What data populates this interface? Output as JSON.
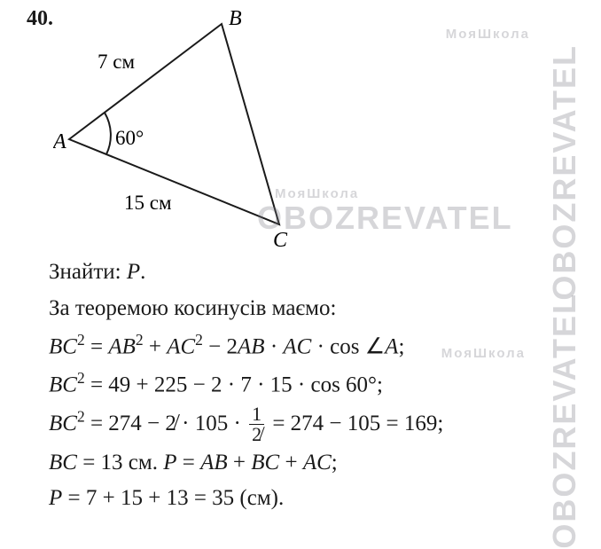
{
  "problem_number": "40.",
  "triangle": {
    "type": "diagram",
    "vertex_labels": {
      "A": "A",
      "B": "B",
      "C": "C"
    },
    "side_labels": {
      "AB": "7 см",
      "AC": "15 см"
    },
    "angle_label": "60°",
    "points": {
      "A": [
        18,
        147
      ],
      "B": [
        190,
        17
      ],
      "C": [
        255,
        243
      ]
    },
    "stroke_color": "#1a1a1a",
    "stroke_width": 2,
    "label_fontsize": 24,
    "vertex_fontstyle": "italic"
  },
  "solution": {
    "line1": "Знайти: <span class=\"italic\">P</span>.",
    "line2": "За теоремою косинусів маємо:",
    "line3": "<span class=\"italic\">BC</span><sup>2</sup> = <span class=\"italic\">AB</span><sup>2</sup> + <span class=\"italic\">AC</span><sup>2</sup> − 2<span class=\"italic\">AB</span> · <span class=\"italic\">AC</span> · cos ∠<span class=\"italic\">A</span>;",
    "line4": "<span class=\"italic\">BC</span><sup>2</sup> = 49 + 225 − 2 · 7 · 15 · cos 60°;",
    "line5": "<span class=\"italic\">BC</span><sup>2</sup> = 274 − 2̸ · 105 · <span class=\"frac\"><span class=\"num\">1</span><span class=\"den\">2̸</span></span> = 274 − 105 = 169;",
    "line6": "<span class=\"italic\">BC</span> = 13 см. <span class=\"italic\">P</span> = <span class=\"italic\">AB</span> + <span class=\"italic\">BC</span> + <span class=\"italic\">AC</span>;",
    "line7": "<span class=\"italic\">P</span> = 7 + 15 + 13 = 35 (см)."
  },
  "watermark": {
    "brand_big": "OBOZREVATEL",
    "brand_small": "МояШкола",
    "color": "rgba(120,120,130,0.30)"
  }
}
